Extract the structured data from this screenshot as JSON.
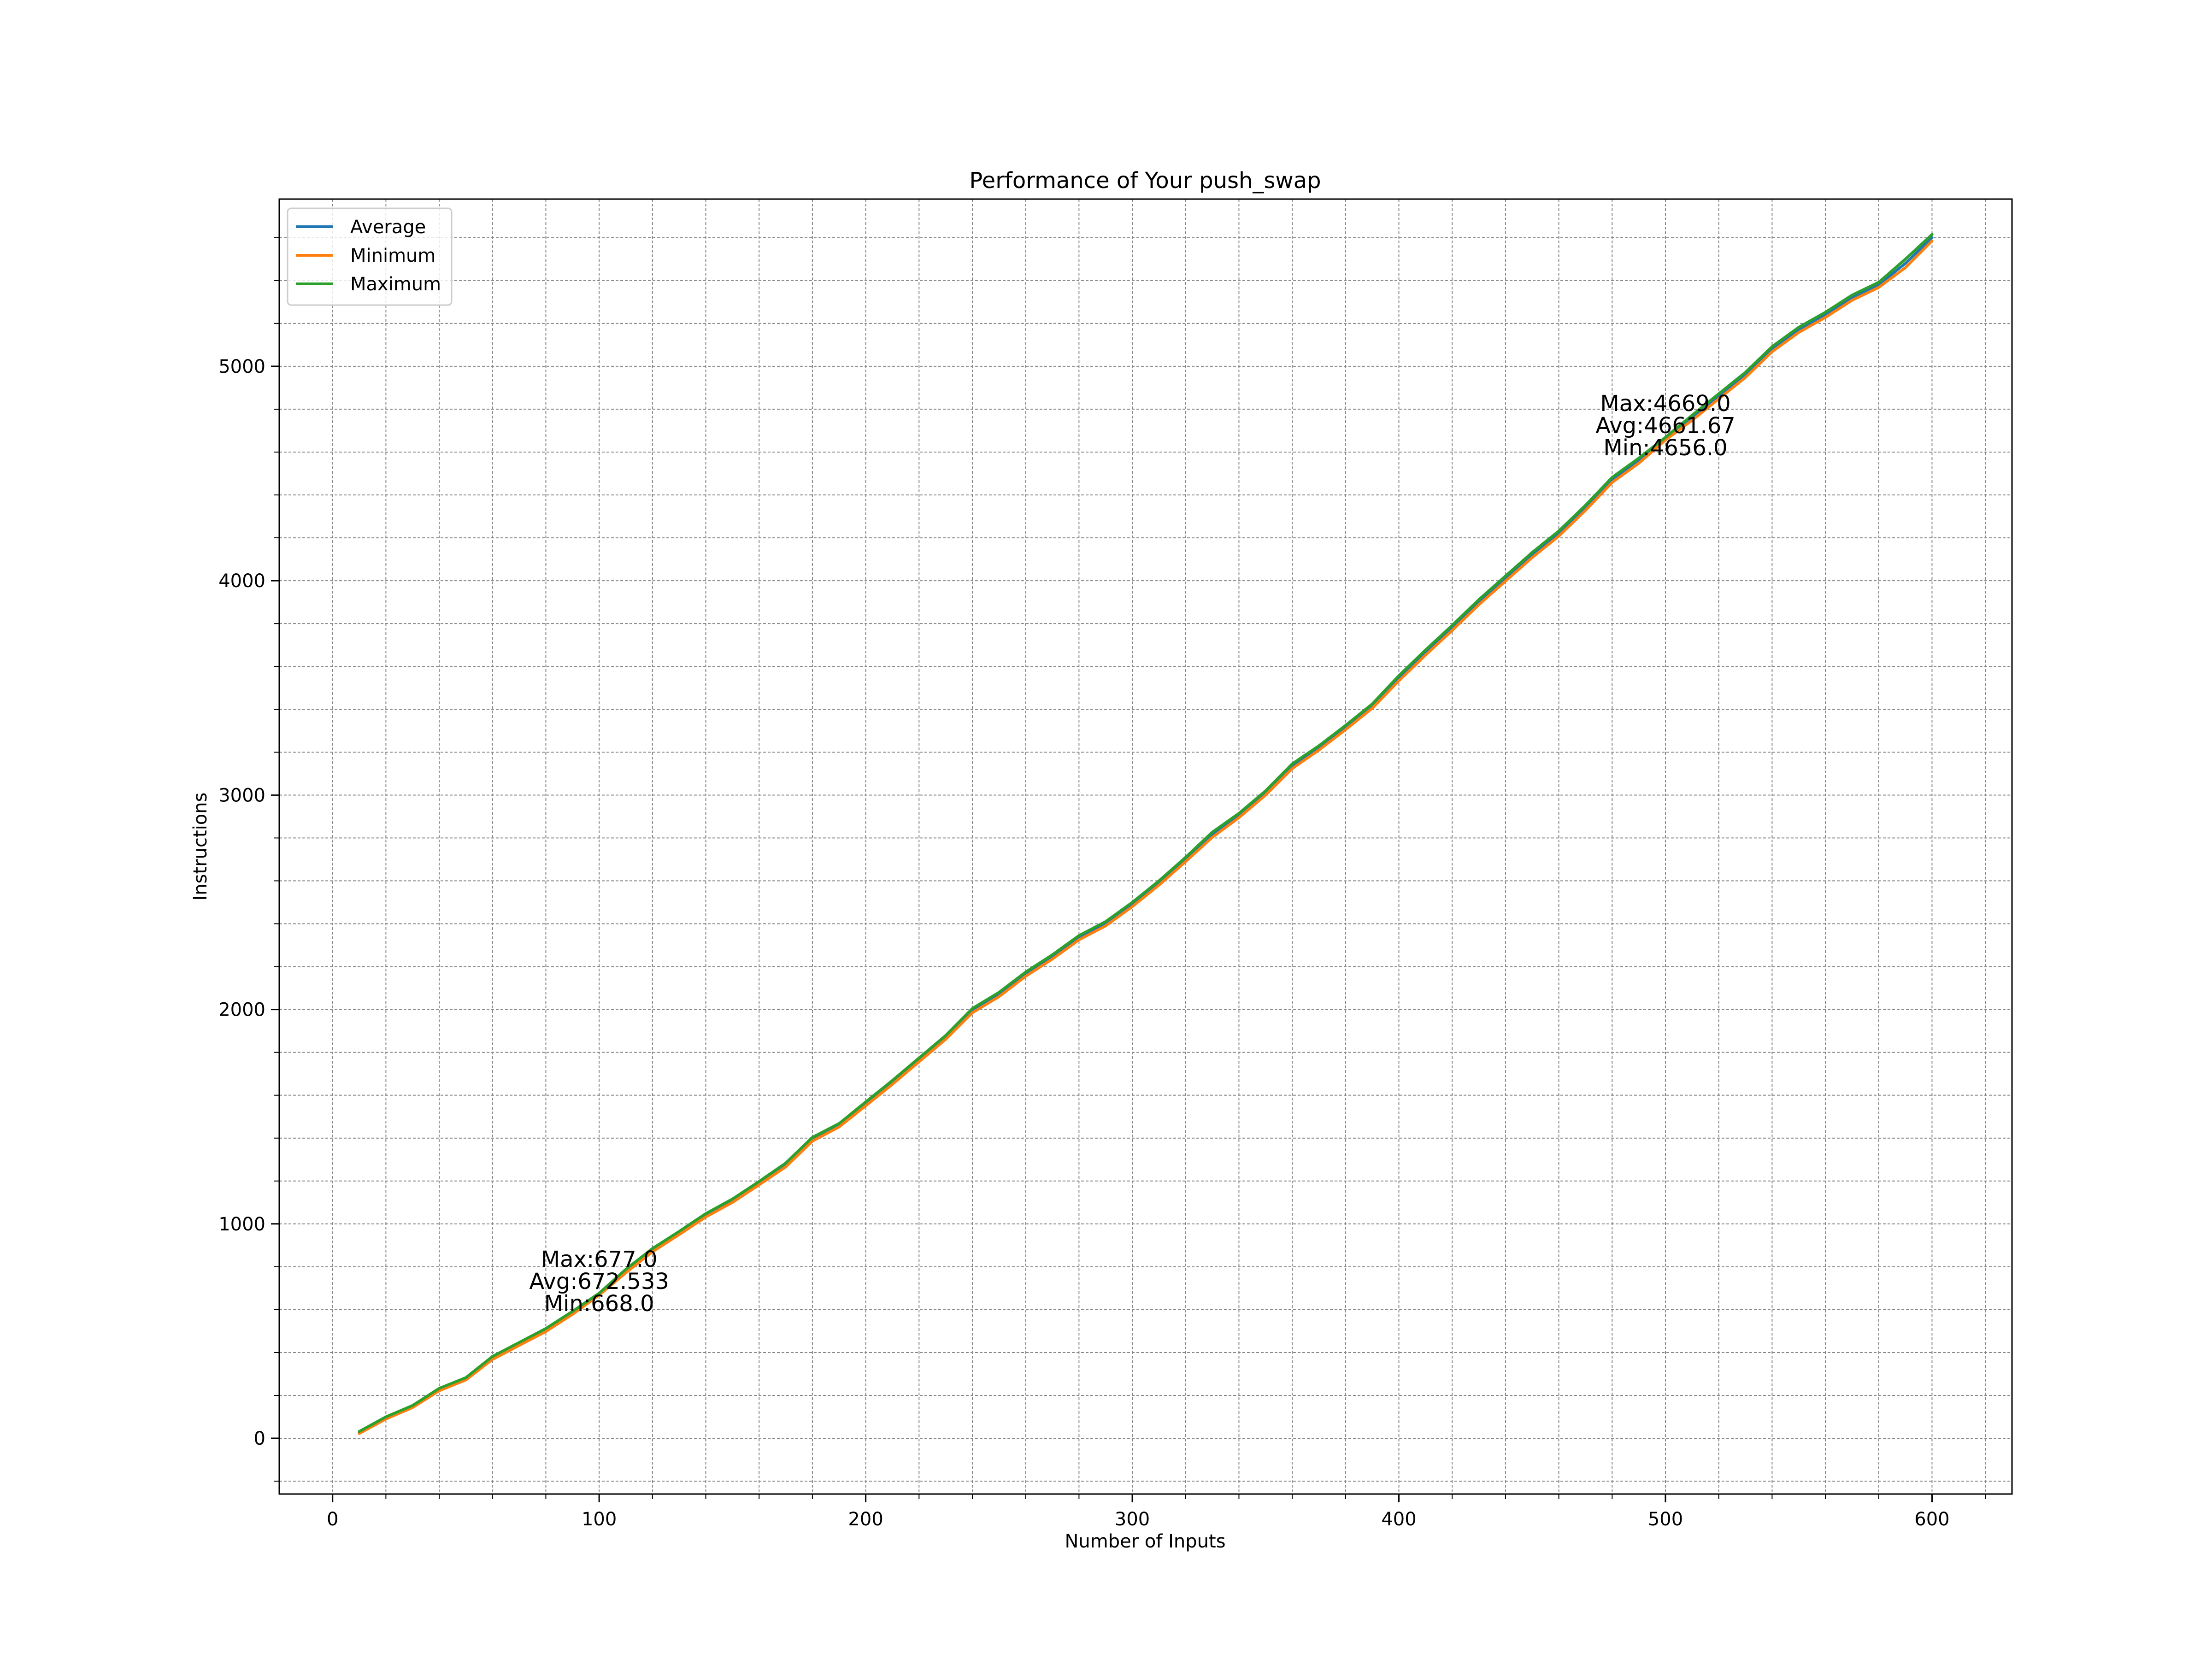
{
  "chart_data": {
    "type": "line",
    "title": "Performance of Your push_swap",
    "xlabel": "Number of Inputs",
    "ylabel": "Instructions",
    "xlim": [
      -20,
      630
    ],
    "ylim": [
      -260,
      5780
    ],
    "grid": true,
    "legend_position": "top-left",
    "x_ticks": [
      0,
      100,
      200,
      300,
      400,
      500,
      600
    ],
    "y_ticks": [
      0,
      1000,
      2000,
      3000,
      4000,
      5000
    ],
    "x_minor_step": 20,
    "y_minor_step": 200,
    "x": [
      10,
      20,
      30,
      40,
      50,
      60,
      70,
      80,
      90,
      100,
      110,
      120,
      130,
      140,
      150,
      160,
      170,
      180,
      190,
      200,
      210,
      220,
      230,
      240,
      250,
      260,
      270,
      280,
      290,
      300,
      310,
      320,
      330,
      340,
      350,
      360,
      370,
      380,
      390,
      400,
      410,
      420,
      430,
      440,
      450,
      460,
      470,
      480,
      490,
      500,
      510,
      520,
      530,
      540,
      550,
      560,
      570,
      580,
      590,
      600
    ],
    "series": [
      {
        "name": "Average",
        "color": "#1f77b4",
        "values": [
          27,
          95,
          148,
          228,
          278,
          375,
          440,
          505,
          585,
          672,
          780,
          878,
          958,
          1040,
          1108,
          1190,
          1275,
          1395,
          1460,
          1560,
          1660,
          1765,
          1870,
          1995,
          2070,
          2165,
          2245,
          2335,
          2400,
          2490,
          2590,
          2700,
          2815,
          2905,
          3010,
          3135,
          3220,
          3315,
          3415,
          3545,
          3665,
          3780,
          3900,
          4010,
          4120,
          4220,
          4340,
          4470,
          4560,
          4662,
          4760,
          4860,
          4960,
          5080,
          5170,
          5240,
          5320,
          5380,
          5480,
          5600
        ]
      },
      {
        "name": "Minimum",
        "color": "#ff7f0e",
        "values": [
          22,
          90,
          143,
          222,
          272,
          368,
          433,
          498,
          578,
          668,
          772,
          870,
          950,
          1032,
          1100,
          1182,
          1266,
          1386,
          1452,
          1551,
          1651,
          1756,
          1861,
          1985,
          2060,
          2155,
          2235,
          2325,
          2390,
          2480,
          2580,
          2690,
          2803,
          2895,
          3000,
          3124,
          3210,
          3305,
          3405,
          3533,
          3653,
          3768,
          3888,
          3998,
          4108,
          4208,
          4328,
          4458,
          4548,
          4656,
          4748,
          4848,
          4948,
          5068,
          5158,
          5228,
          5308,
          5368,
          5460,
          5585
        ]
      },
      {
        "name": "Maximum",
        "color": "#2ca02c",
        "values": [
          32,
          100,
          153,
          233,
          283,
          382,
          447,
          512,
          592,
          677,
          788,
          885,
          965,
          1048,
          1116,
          1198,
          1284,
          1404,
          1468,
          1569,
          1669,
          1774,
          1879,
          2005,
          2080,
          2175,
          2255,
          2345,
          2410,
          2500,
          2600,
          2710,
          2827,
          2915,
          3020,
          3146,
          3230,
          3325,
          3425,
          3557,
          3677,
          3792,
          3912,
          4022,
          4132,
          4232,
          4352,
          4482,
          4572,
          4669,
          4772,
          4872,
          4972,
          5092,
          5182,
          5252,
          5332,
          5392,
          5500,
          5615
        ]
      }
    ],
    "annotations": [
      {
        "x": 100,
        "y": 677,
        "lines": [
          "Max:677.0",
          "Avg:672.533",
          "Min:668.0"
        ]
      },
      {
        "x": 500,
        "y": 4669,
        "lines": [
          "Max:4669.0",
          "Avg:4661.67",
          "Min:4656.0"
        ]
      }
    ]
  }
}
